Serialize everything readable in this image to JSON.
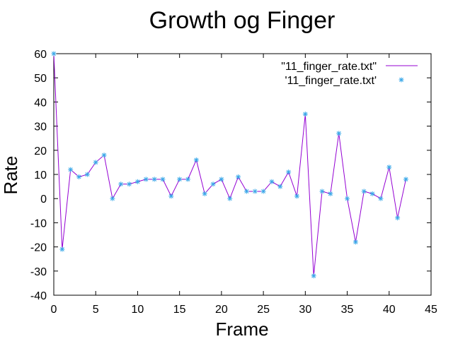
{
  "chart_data": {
    "type": "line",
    "title": "Growth og Finger",
    "xlabel": "Frame",
    "ylabel": "Rate",
    "xlim": [
      0,
      45
    ],
    "ylim": [
      -40,
      60
    ],
    "xticks": [
      0,
      5,
      10,
      15,
      20,
      25,
      30,
      35,
      40,
      45
    ],
    "yticks": [
      -40,
      -30,
      -20,
      -10,
      0,
      10,
      20,
      30,
      40,
      50,
      60
    ],
    "grid": false,
    "legend_position": "top-right",
    "x": [
      0,
      1,
      2,
      3,
      4,
      5,
      6,
      7,
      8,
      9,
      10,
      11,
      12,
      13,
      14,
      15,
      16,
      17,
      18,
      19,
      20,
      21,
      22,
      23,
      24,
      25,
      26,
      27,
      28,
      29,
      30,
      31,
      32,
      33,
      34,
      35,
      36,
      37,
      38,
      39,
      40,
      41,
      42
    ],
    "series": [
      {
        "name": "\"11_finger_rate.txt\"",
        "style": "line",
        "color": "#9400d3",
        "values": [
          60,
          -21,
          12,
          9,
          10,
          15,
          18,
          0,
          6,
          6,
          7,
          8,
          8,
          8,
          1,
          8,
          8,
          16,
          2,
          6,
          8,
          0,
          9,
          3,
          3,
          3,
          7,
          5,
          11,
          1,
          35,
          -32,
          3,
          2,
          27,
          0,
          -18,
          3,
          2,
          0,
          13,
          -8,
          8
        ]
      },
      {
        "name": "'11_finger_rate.txt'",
        "style": "points",
        "marker": "*",
        "color": "#3aa8e8",
        "values": [
          60,
          -21,
          12,
          9,
          10,
          15,
          18,
          0,
          6,
          6,
          7,
          8,
          8,
          8,
          1,
          8,
          8,
          16,
          2,
          6,
          8,
          0,
          9,
          3,
          3,
          3,
          7,
          5,
          11,
          1,
          35,
          -32,
          3,
          2,
          27,
          0,
          -18,
          3,
          2,
          0,
          13,
          -8,
          8
        ]
      }
    ]
  }
}
